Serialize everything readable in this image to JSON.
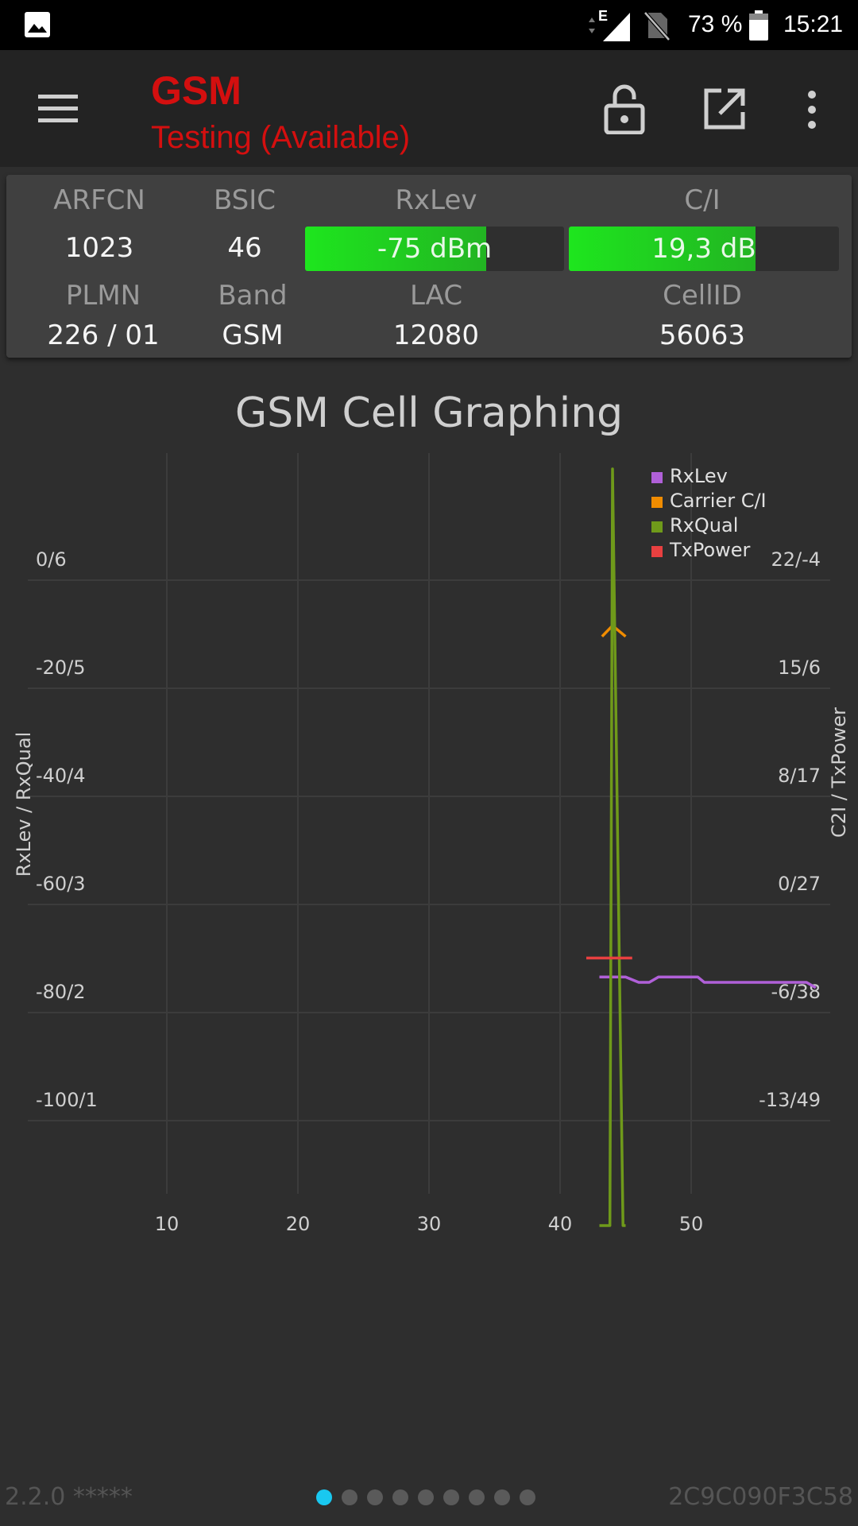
{
  "status_bar": {
    "network_type": "E",
    "battery_percent": "73 %",
    "time": "15:21"
  },
  "app_bar": {
    "title": "GSM",
    "subtitle": "Testing (Available)",
    "title_color": "#d40f0f"
  },
  "cell_info": {
    "arfcn_label": "ARFCN",
    "arfcn_value": "1023",
    "bsic_label": "BSIC",
    "bsic_value": "46",
    "rxlev_label": "RxLev",
    "rxlev_value": "-75 dBm",
    "rxlev_fill": 0.7,
    "ci_label": "C/I",
    "ci_value": "19,3 dB",
    "ci_fill": 0.69,
    "plmn_label": "PLMN",
    "plmn_value": "226 / 01",
    "band_label": "Band",
    "band_value": "GSM",
    "lac_label": "LAC",
    "lac_value": "12080",
    "cellid_label": "CellID",
    "cellid_value": "56063"
  },
  "chart_data": {
    "type": "line",
    "title": "GSM Cell Graphing",
    "ylabel_left": "RxLev / RxQual",
    "ylabel_right": "C2I / TxPower",
    "x_ticks": [
      "10",
      "20",
      "30",
      "40",
      "50"
    ],
    "x_range": [
      0,
      60
    ],
    "left_ticks": [
      "0/6",
      "-20/5",
      "-40/4",
      "-60/3",
      "-80/2",
      "-100/1"
    ],
    "right_ticks": [
      "22/-4",
      "15/6",
      "8/17",
      "0/27",
      "-6/38",
      "-13/49"
    ],
    "y_range": [
      -120,
      20
    ],
    "grid": true,
    "legend_position": "top-right",
    "series": [
      {
        "name": "RxLev",
        "color": "#b060d8",
        "points": [
          [
            43,
            -74
          ],
          [
            45,
            -74
          ],
          [
            46,
            -75
          ],
          [
            46.8,
            -75
          ],
          [
            47.5,
            -74
          ],
          [
            48.5,
            -74
          ],
          [
            50.5,
            -74
          ],
          [
            51,
            -75
          ],
          [
            55,
            -75
          ],
          [
            58.8,
            -75
          ],
          [
            59.5,
            -76
          ]
        ]
      },
      {
        "name": "Carrier C/I",
        "color": "#f08c00",
        "points": [
          [
            43.2,
            -11
          ],
          [
            44,
            -9
          ],
          [
            45,
            -11
          ]
        ]
      },
      {
        "name": "RxQual",
        "color": "#6f9a1a",
        "points": [
          [
            43,
            -120
          ],
          [
            43.8,
            -120
          ],
          [
            44,
            20
          ],
          [
            44.8,
            -120
          ],
          [
            45,
            -120
          ]
        ]
      },
      {
        "name": "TxPower",
        "color": "#e84040",
        "points": [
          [
            42,
            -70.5
          ],
          [
            45.5,
            -70.5
          ]
        ]
      }
    ]
  },
  "footer": {
    "version": "2.2.0 *****",
    "device_id": "2C9C090F3C58",
    "page_count": 9,
    "active_page": 1
  },
  "icons": {
    "gallery": "image-icon",
    "menu": "hamburger-icon",
    "lock": "lock-icon",
    "share": "open-external-icon",
    "more": "more-vert-icon"
  }
}
